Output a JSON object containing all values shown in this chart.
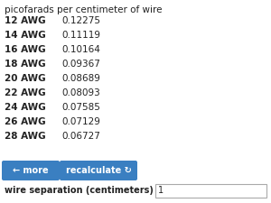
{
  "title": "picofarads per centimeter of wire",
  "rows": [
    {
      "awg": "12 AWG",
      "value": "0.12275"
    },
    {
      "awg": "14 AWG",
      "value": "0.11119"
    },
    {
      "awg": "16 AWG",
      "value": "0.10164"
    },
    {
      "awg": "18 AWG",
      "value": "0.09367"
    },
    {
      "awg": "20 AWG",
      "value": "0.08689"
    },
    {
      "awg": "22 AWG",
      "value": "0.08093"
    },
    {
      "awg": "24 AWG",
      "value": "0.07585"
    },
    {
      "awg": "26 AWG",
      "value": "0.07129"
    },
    {
      "awg": "28 AWG",
      "value": "0.06727"
    }
  ],
  "btn_more_text": "← more",
  "btn_recalc_text": "recalculate ↻",
  "btn_color": "#3a7fc1",
  "btn_text_color": "#ffffff",
  "footer_label": "wire separation (centimeters)",
  "footer_value": "1",
  "bg_color": "#ffffff",
  "title_color": "#222222",
  "row_text_color": "#222222",
  "footer_text_color": "#222222",
  "font_size_title": 7.5,
  "font_size_row": 7.5,
  "font_size_footer": 7.0,
  "font_size_btn": 7.0
}
